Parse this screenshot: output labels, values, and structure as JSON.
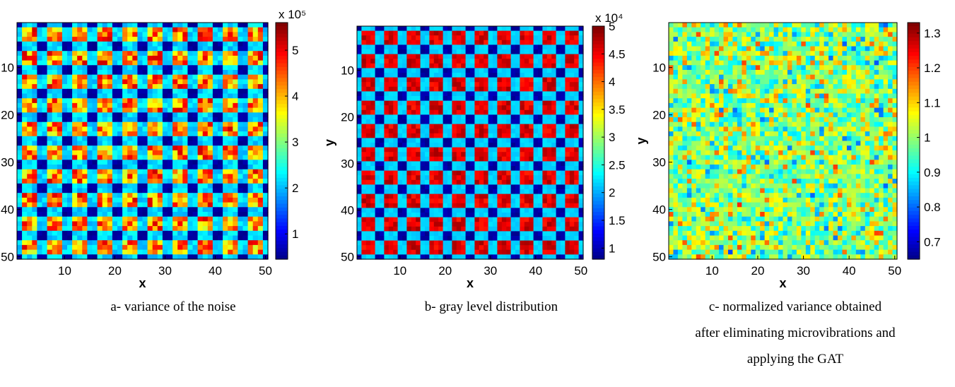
{
  "chart_data": [
    {
      "type": "heatmap",
      "panel": "a",
      "caption": "a- variance of the noise",
      "xlabel": "x",
      "ylabel": "y",
      "xlim": [
        1,
        50
      ],
      "ylim": [
        1,
        50
      ],
      "y_reversed": true,
      "x_ticks": [
        10,
        20,
        30,
        40,
        50
      ],
      "y_ticks": [
        10,
        20,
        30,
        40,
        50
      ],
      "colormap": "jet",
      "colorbar": {
        "min": 0.45,
        "max": 5.6,
        "ticks": [
          1,
          2,
          3,
          4,
          5
        ],
        "tick_labels": [
          "1",
          "2",
          "3",
          "4",
          "5"
        ],
        "exponent_label": "x 10⁵"
      },
      "pattern": {
        "grid_cells": 50,
        "spot_period": 5,
        "spot_count_per_axis": 10,
        "bright_core_level": 4.3,
        "ring_level": 2.2,
        "background_level": 0.6,
        "spot_variation": 0.9
      }
    },
    {
      "type": "heatmap",
      "panel": "b",
      "caption": "b- gray level distribution",
      "xlabel": "x",
      "ylabel": "y",
      "xlim": [
        1,
        50
      ],
      "ylim": [
        1,
        50
      ],
      "y_reversed": true,
      "x_ticks": [
        10,
        20,
        30,
        40,
        50
      ],
      "y_ticks": [
        10,
        20,
        30,
        40,
        50
      ],
      "colormap": "jet",
      "colorbar": {
        "min": 0.8,
        "max": 5.0,
        "ticks": [
          1,
          1.5,
          2,
          2.5,
          3,
          3.5,
          4,
          4.5,
          5
        ],
        "tick_labels": [
          "1",
          "1.5",
          "2",
          "2.5",
          "3",
          "3.5",
          "4",
          "4.5",
          "5"
        ],
        "exponent_label": "x 10⁴"
      },
      "pattern": {
        "grid_cells": 50,
        "spot_period": 5,
        "spot_count_per_axis": 10,
        "bright_core_level": 4.6,
        "ring_level": 2.2,
        "background_level": 0.95,
        "spot_variation": 0.25
      }
    },
    {
      "type": "heatmap",
      "panel": "c",
      "caption": "c- normalized variance obtained after eliminating microvibrations and applying the GAT",
      "xlabel": "x",
      "ylabel": "y",
      "xlim": [
        1,
        50
      ],
      "ylim": [
        1,
        50
      ],
      "y_reversed": true,
      "x_ticks": [
        10,
        20,
        30,
        40,
        50
      ],
      "y_ticks": [
        10,
        20,
        30,
        40,
        50
      ],
      "colormap": "jet",
      "colorbar": {
        "min": 0.65,
        "max": 1.33,
        "ticks": [
          0.7,
          0.8,
          0.9,
          1,
          1.1,
          1.2,
          1.3
        ],
        "tick_labels": [
          "0.7",
          "0.8",
          "0.9",
          "1",
          "1.1",
          "1.2",
          "1.3"
        ],
        "exponent_label": ""
      },
      "pattern": {
        "grid_cells": 50,
        "mean": 1.0,
        "spread": 0.1
      }
    }
  ],
  "captions": {
    "a": [
      "a- variance of the noise"
    ],
    "b": [
      "b- gray level distribution"
    ],
    "c": [
      "c- normalized variance obtained",
      "after eliminating microvibrations and",
      "applying the GAT"
    ]
  }
}
